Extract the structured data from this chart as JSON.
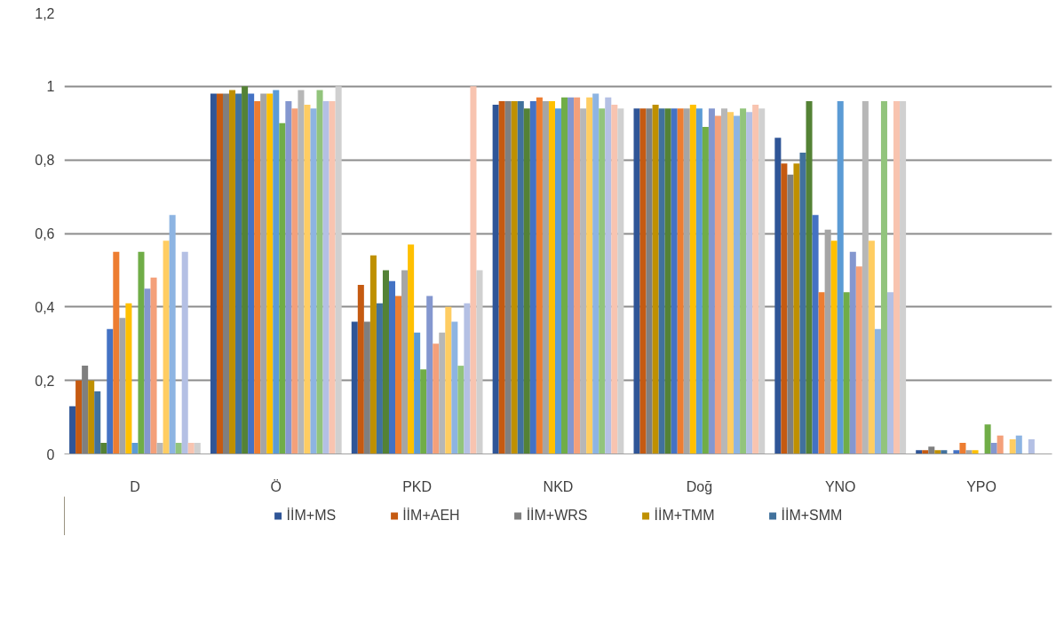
{
  "chart_data": {
    "type": "bar",
    "categories": [
      "D",
      "Ö",
      "PKD",
      "NKD",
      "Doğ",
      "YNO",
      "YPO"
    ],
    "ylim": [
      0,
      1.2
    ],
    "yticks": [
      0,
      {
        "value": 0.2,
        "label": "0,2"
      },
      {
        "value": 0.4,
        "label": "0,4"
      },
      {
        "value": 0.6,
        "label": "0,6"
      },
      {
        "value": 0.8,
        "label": "0,8"
      },
      1,
      {
        "value": 1.2,
        "label": "1,2"
      }
    ],
    "grid": "y",
    "legend": "bottom",
    "series": [
      {
        "name": "İİM+MS",
        "color": "#2f5597",
        "values": [
          0.13,
          0.98,
          0.36,
          0.95,
          0.94,
          0.86,
          0.01
        ]
      },
      {
        "name": "İİM+AEH",
        "color": "#c55a11",
        "values": [
          0.2,
          0.98,
          0.46,
          0.96,
          0.94,
          0.79,
          0.01
        ]
      },
      {
        "name": "İİM+WRS",
        "color": "#7f7f7f",
        "values": [
          0.24,
          0.98,
          0.36,
          0.96,
          0.94,
          0.76,
          0.02
        ]
      },
      {
        "name": "İİM+TMM",
        "color": "#bf9000",
        "values": [
          0.2,
          0.99,
          0.54,
          0.96,
          0.95,
          0.79,
          0.01
        ]
      },
      {
        "name": "İİM+SMM",
        "color": "#41719c",
        "values": [
          0.17,
          0.98,
          0.41,
          0.96,
          0.94,
          0.82,
          0.01
        ]
      },
      {
        "color": "#548235",
        "values": [
          0.03,
          1.0,
          0.5,
          0.94,
          0.94,
          0.96,
          0
        ]
      },
      {
        "color": "#4472c4",
        "values": [
          0.34,
          0.98,
          0.47,
          0.96,
          0.94,
          0.65,
          0.01
        ]
      },
      {
        "color": "#ed7d31",
        "values": [
          0.55,
          0.96,
          0.43,
          0.97,
          0.94,
          0.44,
          0.03
        ]
      },
      {
        "color": "#a5a5a5",
        "values": [
          0.37,
          0.98,
          0.5,
          0.96,
          0.94,
          0.61,
          0.01
        ]
      },
      {
        "color": "#ffc000",
        "values": [
          0.41,
          0.98,
          0.57,
          0.96,
          0.95,
          0.58,
          0.01
        ]
      },
      {
        "color": "#5b9bd5",
        "values": [
          0.03,
          0.99,
          0.33,
          0.94,
          0.94,
          0.96,
          0
        ]
      },
      {
        "color": "#70ad47",
        "values": [
          0.55,
          0.9,
          0.23,
          0.97,
          0.89,
          0.44,
          0.08
        ]
      },
      {
        "color": "#8497cf",
        "values": [
          0.45,
          0.96,
          0.43,
          0.97,
          0.94,
          0.55,
          0.03
        ]
      },
      {
        "color": "#f4a07a",
        "values": [
          0.48,
          0.94,
          0.3,
          0.97,
          0.92,
          0.51,
          0.05
        ]
      },
      {
        "color": "#b7b7b7",
        "values": [
          0.03,
          0.99,
          0.33,
          0.94,
          0.94,
          0.96,
          0
        ]
      },
      {
        "color": "#ffcd62",
        "values": [
          0.58,
          0.95,
          0.4,
          0.97,
          0.93,
          0.58,
          0.04
        ]
      },
      {
        "color": "#8db4e2",
        "values": [
          0.65,
          0.94,
          0.36,
          0.98,
          0.92,
          0.34,
          0.05
        ]
      },
      {
        "color": "#92c47c",
        "values": [
          0.03,
          0.99,
          0.24,
          0.94,
          0.94,
          0.96,
          0
        ]
      },
      {
        "color": "#b4c0e4",
        "values": [
          0.55,
          0.96,
          0.41,
          0.97,
          0.93,
          0.44,
          0.04
        ]
      },
      {
        "color": "#f8c4b0",
        "values": [
          0.03,
          0.96,
          1.0,
          0.95,
          0.95,
          0.96,
          0
        ]
      },
      {
        "color": "#d0d0d0",
        "values": [
          0.03,
          1.0,
          0.5,
          0.94,
          0.94,
          0.96,
          0
        ]
      }
    ]
  }
}
